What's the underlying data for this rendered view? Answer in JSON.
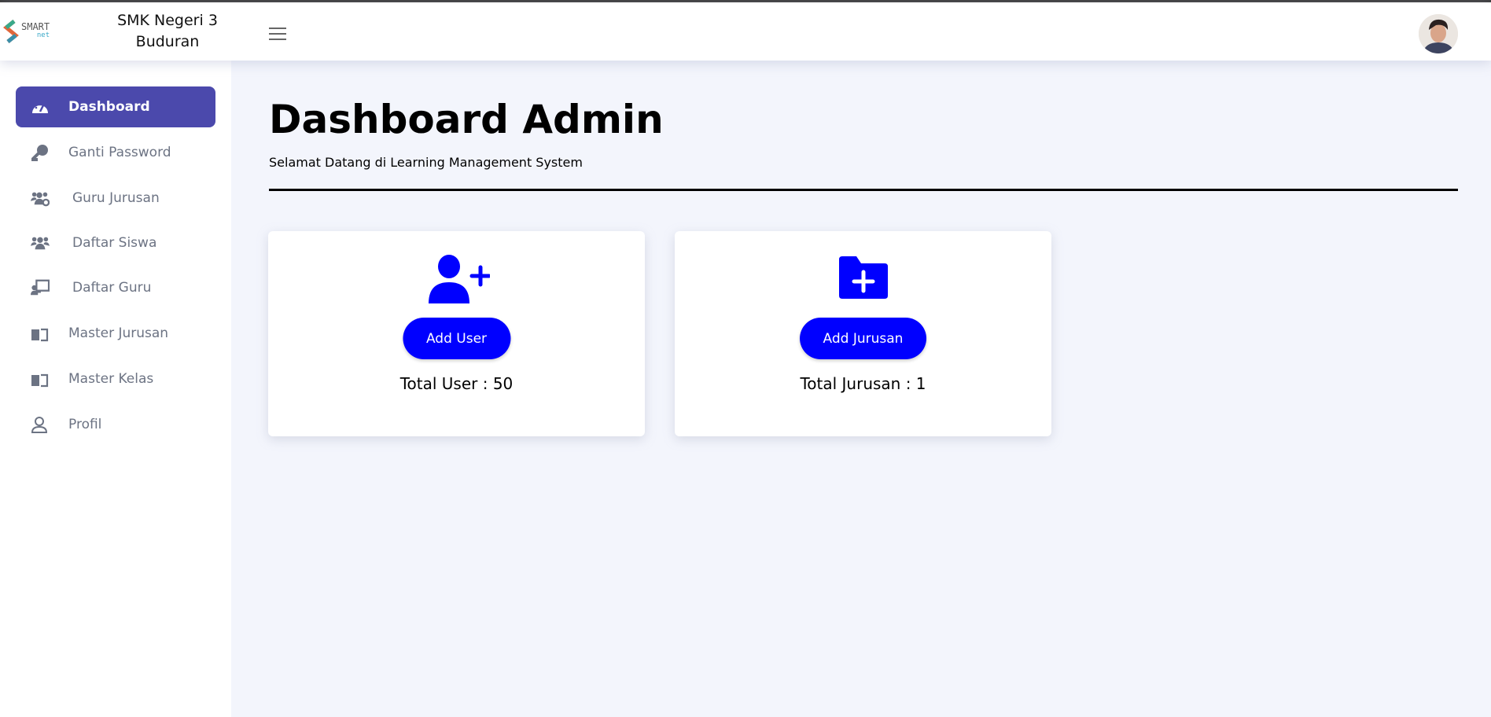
{
  "header": {
    "logo_text": "SMART",
    "logo_sub": "net",
    "school_line1": "SMK Negeri 3",
    "school_line2": "Buduran",
    "menu_icon": "hamburger-icon",
    "avatar_icon": "user-avatar"
  },
  "sidebar": {
    "items": [
      {
        "label": "Dashboard",
        "icon": "dashboard-gauge-icon",
        "active": true
      },
      {
        "label": "Ganti Password",
        "icon": "key-icon"
      },
      {
        "label": "Guru Jurusan",
        "icon": "users-cog-icon"
      },
      {
        "label": "Daftar Siswa",
        "icon": "users-icon"
      },
      {
        "label": "Daftar Guru",
        "icon": "chalkboard-teacher-icon"
      },
      {
        "label": "Master Jurusan",
        "icon": "book-icon"
      },
      {
        "label": "Master Kelas",
        "icon": "book-icon"
      },
      {
        "label": "Profil",
        "icon": "user-icon"
      }
    ],
    "active_color": "#4b49ac"
  },
  "main": {
    "title": "Dashboard Admin",
    "subtitle": "Selamat Datang di Learning Management System",
    "cards": [
      {
        "icon": "user-plus-icon",
        "button": "Add User",
        "total": "Total User : 50"
      },
      {
        "icon": "folder-plus-icon",
        "button": "Add Jurusan",
        "total": "Total Jurusan : 1"
      }
    ],
    "accent_color": "#0000ff"
  }
}
